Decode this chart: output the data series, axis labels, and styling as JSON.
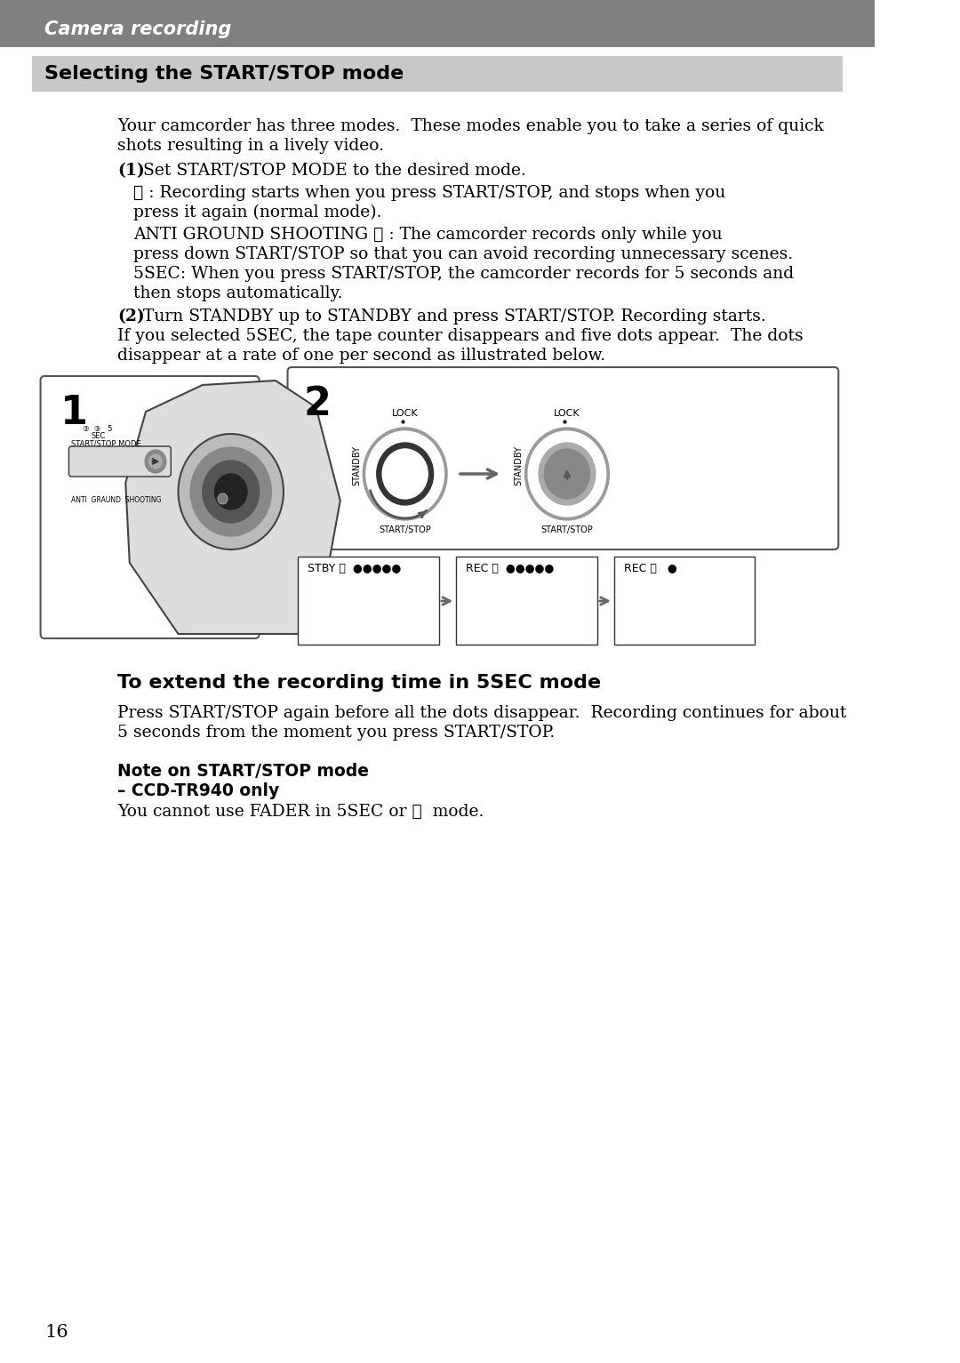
{
  "page_bg": "#ffffff",
  "header_bg": "#808080",
  "header_text": "Camera recording",
  "header_text_color": "#ffffff",
  "section_bg": "#c8c8c8",
  "section_title": "Selecting the START/STOP mode",
  "section_title_color": "#000000",
  "body_text_color": "#000000",
  "para1": "Your camcorder has three modes.  These modes enable you to take a series of quick\nshots resulting in a lively video.",
  "item1_bold": "(1)",
  "item1_text": " Set START/STOP MODE to the desired mode.",
  "item1a_indent": "     ③ : Recording starts when you press START/STOP, and stops when you\n     press it again (normal mode).",
  "item1b_indent": "     ANTI GROUND SHOOTING ③ : The camcorder records only while you\n     press down START/STOP so that you can avoid recording unnecessary scenes.\n     5SEC: When you press START/STOP, the camcorder records for 5 seconds and\n     then stops automatically.",
  "item2_bold": "(2)",
  "item2_text": " Turn STANDBY up to STANDBY and press START/STOP. Recording starts.",
  "item2b_text": "If you selected 5SEC, the tape counter disappears and five dots appear.  The dots\ndisappear at a rate of one per second as illustrated below.",
  "extend_title": "To extend the recording time in 5SEC mode",
  "extend_text": "Press START/STOP again before all the dots disappear.  Recording continues for about\n5 seconds from the moment you press START/STOP.",
  "note_bold": "Note on START/STOP mode",
  "note_sub": "– CCD-TR940 only",
  "note_text": "You cannot use FADER in 5SEC or ③  mode.",
  "page_number": "16",
  "footer_color": "#000000"
}
